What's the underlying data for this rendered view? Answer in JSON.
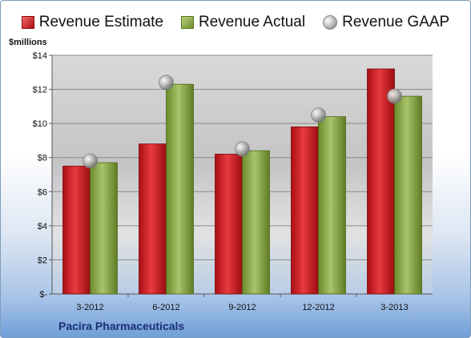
{
  "chart_data": {
    "type": "bar",
    "title": "",
    "ylabel": "$millions",
    "xlabel": "",
    "categories": [
      "3-2012",
      "6-2012",
      "9-2012",
      "12-2012",
      "3-2013"
    ],
    "series": [
      {
        "name": "Revenue Estimate",
        "type": "bar",
        "color": "#c0141b",
        "values": [
          7.5,
          8.8,
          8.2,
          9.8,
          13.2
        ]
      },
      {
        "name": "Revenue Actual",
        "type": "bar",
        "color": "#86a447",
        "values": [
          7.7,
          12.3,
          8.4,
          10.4,
          11.6
        ]
      },
      {
        "name": "Revenue GAAP",
        "type": "marker",
        "color": "#b0b0b0",
        "values": [
          7.8,
          12.4,
          8.5,
          10.5,
          11.6
        ]
      }
    ],
    "ylim": [
      0,
      14
    ],
    "yticks": [
      0,
      2,
      4,
      6,
      8,
      10,
      12,
      14
    ],
    "ytick_labels": [
      "$-",
      "$2",
      "$4",
      "$6",
      "$8",
      "$10",
      "$12",
      "$14"
    ],
    "grid": true,
    "legend_position": "top"
  },
  "company": "Pacira Pharmaceuticals"
}
